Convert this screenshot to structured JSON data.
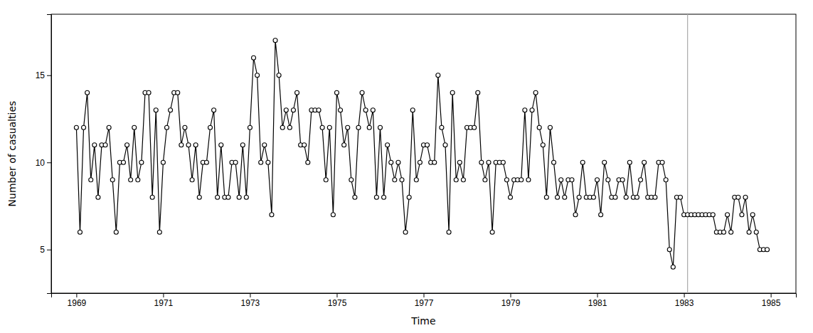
{
  "chart_data": {
    "type": "line",
    "xlabel": "Time",
    "ylabel": "Number of casualties",
    "x": [
      1969,
      1969.0833333333333,
      1969.1666666666667,
      1969.25,
      1969.3333333333333,
      1969.4166666666667,
      1969.5,
      1969.5833333333333,
      1969.6666666666667,
      1969.75,
      1969.8333333333333,
      1969.9166666666667,
      1970,
      1970.0833333333333,
      1970.1666666666667,
      1970.25,
      1970.3333333333333,
      1970.4166666666667,
      1970.5,
      1970.5833333333333,
      1970.6666666666667,
      1970.75,
      1970.8333333333333,
      1970.9166666666667,
      1971,
      1971.0833333333333,
      1971.1666666666667,
      1971.25,
      1971.3333333333333,
      1971.4166666666667,
      1971.5,
      1971.5833333333333,
      1971.6666666666667,
      1971.75,
      1971.8333333333333,
      1971.9166666666667,
      1972,
      1972.0833333333333,
      1972.1666666666667,
      1972.25,
      1972.3333333333333,
      1972.4166666666667,
      1972.5,
      1972.5833333333333,
      1972.6666666666667,
      1972.75,
      1972.8333333333333,
      1972.9166666666667,
      1973,
      1973.0833333333333,
      1973.1666666666667,
      1973.25,
      1973.3333333333333,
      1973.4166666666667,
      1973.5,
      1973.5833333333333,
      1973.6666666666667,
      1973.75,
      1973.8333333333333,
      1973.9166666666667,
      1974,
      1974.0833333333333,
      1974.1666666666667,
      1974.25,
      1974.3333333333333,
      1974.4166666666667,
      1974.5,
      1974.5833333333333,
      1974.6666666666667,
      1974.75,
      1974.8333333333333,
      1974.9166666666667,
      1975,
      1975.0833333333333,
      1975.1666666666667,
      1975.25,
      1975.3333333333333,
      1975.4166666666667,
      1975.5,
      1975.5833333333333,
      1975.6666666666667,
      1975.75,
      1975.8333333333333,
      1975.9166666666667,
      1976,
      1976.0833333333333,
      1976.1666666666667,
      1976.25,
      1976.3333333333333,
      1976.4166666666667,
      1976.5,
      1976.5833333333333,
      1976.6666666666667,
      1976.75,
      1976.8333333333333,
      1976.9166666666667,
      1977,
      1977.0833333333333,
      1977.1666666666667,
      1977.25,
      1977.3333333333333,
      1977.4166666666667,
      1977.5,
      1977.5833333333333,
      1977.6666666666667,
      1977.75,
      1977.8333333333333,
      1977.9166666666667,
      1978,
      1978.0833333333333,
      1978.1666666666667,
      1978.25,
      1978.3333333333333,
      1978.4166666666667,
      1978.5,
      1978.5833333333333,
      1978.6666666666667,
      1978.75,
      1978.8333333333333,
      1978.9166666666667,
      1979,
      1979.0833333333333,
      1979.1666666666667,
      1979.25,
      1979.3333333333333,
      1979.4166666666667,
      1979.5,
      1979.5833333333333,
      1979.6666666666667,
      1979.75,
      1979.8333333333333,
      1979.9166666666667,
      1980,
      1980.0833333333333,
      1980.1666666666667,
      1980.25,
      1980.3333333333333,
      1980.4166666666667,
      1980.5,
      1980.5833333333333,
      1980.6666666666667,
      1980.75,
      1980.8333333333333,
      1980.9166666666667,
      1981,
      1981.0833333333333,
      1981.1666666666667,
      1981.25,
      1981.3333333333333,
      1981.4166666666667,
      1981.5,
      1981.5833333333333,
      1981.6666666666667,
      1981.75,
      1981.8333333333333,
      1981.9166666666667,
      1982,
      1982.0833333333333,
      1982.1666666666667,
      1982.25,
      1982.3333333333333,
      1982.4166666666667,
      1982.5,
      1982.5833333333333,
      1982.6666666666667,
      1982.75,
      1982.8333333333333,
      1982.9166666666667,
      1983,
      1983.0833333333333,
      1983.1666666666667,
      1983.25,
      1983.3333333333333,
      1983.4166666666667,
      1983.5,
      1983.5833333333333,
      1983.6666666666667,
      1983.75,
      1983.8333333333333,
      1983.9166666666667,
      1984,
      1984.0833333333333,
      1984.1666666666667,
      1984.25,
      1984.3333333333333,
      1984.4166666666667,
      1984.5,
      1984.5833333333333,
      1984.6666666666667,
      1984.75,
      1984.8333333333333,
      1984.9166666666667
    ],
    "values": [
      12,
      6,
      12,
      14,
      9,
      11,
      8,
      11,
      11,
      12,
      9,
      6,
      10,
      10,
      11,
      9,
      12,
      9,
      10,
      14,
      14,
      8,
      13,
      6,
      10,
      12,
      13,
      14,
      14,
      11,
      12,
      11,
      9,
      11,
      8,
      10,
      10,
      12,
      13,
      8,
      11,
      8,
      8,
      10,
      10,
      8,
      11,
      8,
      12,
      16,
      15,
      10,
      11,
      10,
      7,
      17,
      15,
      12,
      13,
      12,
      13,
      14,
      11,
      11,
      10,
      13,
      13,
      13,
      12,
      9,
      12,
      7,
      14,
      13,
      11,
      12,
      9,
      8,
      12,
      14,
      13,
      12,
      13,
      8,
      12,
      8,
      11,
      10,
      9,
      10,
      9,
      6,
      8,
      13,
      9,
      10,
      11,
      11,
      10,
      10,
      15,
      12,
      11,
      6,
      14,
      9,
      10,
      9,
      12,
      12,
      12,
      14,
      10,
      9,
      10,
      6,
      10,
      10,
      10,
      9,
      8,
      9,
      9,
      9,
      13,
      9,
      13,
      14,
      12,
      11,
      8,
      12,
      10,
      8,
      9,
      8,
      9,
      9,
      7,
      8,
      10,
      8,
      8,
      8,
      9,
      7,
      10,
      9,
      8,
      8,
      9,
      9,
      8,
      10,
      8,
      8,
      9,
      10,
      8,
      8,
      8,
      10,
      10,
      9,
      5,
      4,
      8,
      8,
      7,
      7,
      7,
      7,
      7,
      7,
      7,
      7,
      7,
      6,
      6,
      6,
      7,
      6,
      8,
      8,
      7,
      8,
      6,
      7,
      6,
      5,
      5,
      5
    ],
    "color": "#000000",
    "marker": "circle",
    "annotations": [
      {
        "type": "vline",
        "x": 1983.083,
        "color": "#aaaaaa"
      }
    ],
    "xlim": [
      1968.42,
      1985.58
    ],
    "xticks": [
      1969,
      1971,
      1973,
      1975,
      1977,
      1979,
      1981,
      1983,
      1985
    ],
    "ylim": [
      2.5,
      18.5
    ],
    "yticks": [
      5,
      10,
      15
    ],
    "grid": false
  }
}
